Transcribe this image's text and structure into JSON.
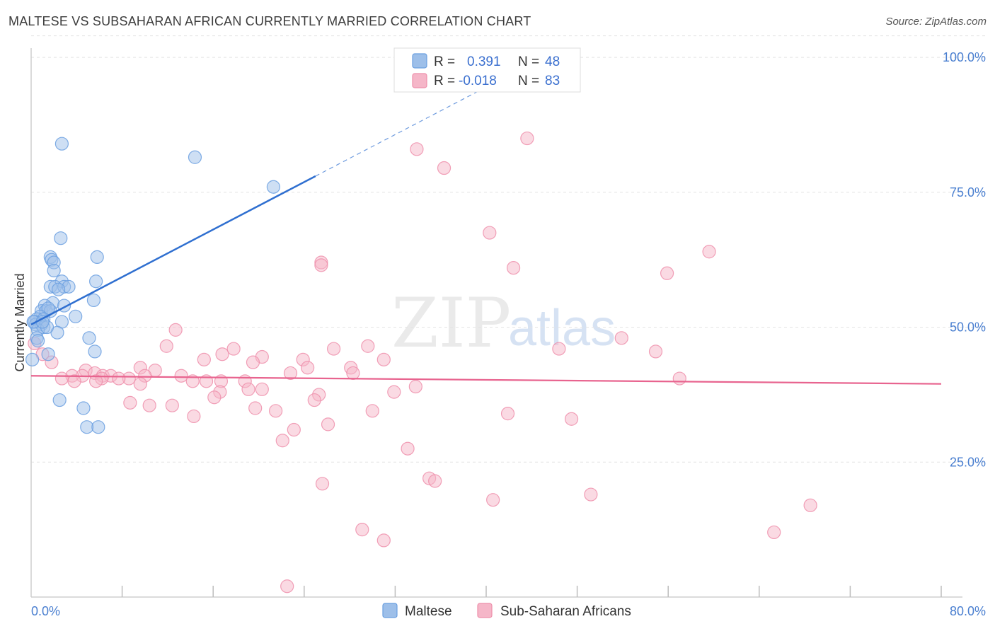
{
  "header": {
    "title": "MALTESE VS SUBSAHARAN AFRICAN CURRENTLY MARRIED CORRELATION CHART",
    "source": "Source: ZipAtlas.com"
  },
  "watermark": {
    "zip": "ZIP",
    "atlas": "atlas"
  },
  "legend_top": {
    "rows": [
      {
        "r_label": "R =",
        "r_value": "0.391",
        "n_label": "N =",
        "n_value": "48",
        "color": "#9dbfe9"
      },
      {
        "r_label": "R =",
        "r_value": "-0.018",
        "n_label": "N =",
        "n_value": "83",
        "color": "#f5b6c8"
      }
    ]
  },
  "legend_bottom": {
    "items": [
      {
        "label": "Maltese",
        "color": "#9dbfe9"
      },
      {
        "label": "Sub-Saharan Africans",
        "color": "#f5b6c8"
      }
    ]
  },
  "chart_data": {
    "type": "scatter",
    "title": "MALTESE VS SUBSAHARAN AFRICAN CURRENTLY MARRIED CORRELATION CHART",
    "xlabel": "",
    "ylabel": "Currently Married",
    "xlim": [
      0,
      80
    ],
    "ylim": [
      0,
      105
    ],
    "x_tick_labels": [
      "0.0%",
      "80.0%"
    ],
    "y_tick_labels": [
      "25.0%",
      "50.0%",
      "75.0%",
      "100.0%"
    ],
    "y_ticks": [
      25,
      50,
      75,
      100
    ],
    "grid": true,
    "series": [
      {
        "name": "Maltese",
        "color": "#6a9fe0",
        "fill": "#9dbfe9",
        "trend": {
          "x0": 0,
          "y0": 50.5,
          "x1": 25,
          "y1": 78,
          "dashed_to_x": 45,
          "color": "#2f6fd0"
        },
        "points": [
          [
            2.7,
            84
          ],
          [
            14.4,
            81.5
          ],
          [
            21.3,
            76
          ],
          [
            2.6,
            66.5
          ],
          [
            1.7,
            63
          ],
          [
            5.8,
            63
          ],
          [
            1.8,
            62.5
          ],
          [
            2.0,
            62
          ],
          [
            2.0,
            60.5
          ],
          [
            2.7,
            58.5
          ],
          [
            5.7,
            58.5
          ],
          [
            1.7,
            57.5
          ],
          [
            2.1,
            57.5
          ],
          [
            2.9,
            57.5
          ],
          [
            3.3,
            57.5
          ],
          [
            2.4,
            57
          ],
          [
            1.9,
            54.5
          ],
          [
            1.2,
            54
          ],
          [
            5.5,
            55
          ],
          [
            2.9,
            54
          ],
          [
            0.9,
            53
          ],
          [
            1.3,
            53
          ],
          [
            1.7,
            53
          ],
          [
            1.5,
            53.5
          ],
          [
            0.8,
            52
          ],
          [
            0.5,
            51.5
          ],
          [
            1.1,
            51.5
          ],
          [
            0.3,
            51
          ],
          [
            3.9,
            52
          ],
          [
            0.4,
            50.5
          ],
          [
            0.9,
            50.5
          ],
          [
            1.1,
            50
          ],
          [
            2.7,
            51
          ],
          [
            0.6,
            49.5
          ],
          [
            2.3,
            49
          ],
          [
            1.4,
            50
          ],
          [
            5.1,
            48
          ],
          [
            0.5,
            48
          ],
          [
            5.6,
            45.5
          ],
          [
            1.5,
            45
          ],
          [
            0.6,
            47.5
          ],
          [
            0.1,
            44
          ],
          [
            2.5,
            36.5
          ],
          [
            4.6,
            35
          ],
          [
            4.9,
            31.5
          ],
          [
            5.9,
            31.5
          ],
          [
            0.2,
            51
          ],
          [
            1.0,
            51
          ]
        ]
      },
      {
        "name": "Sub-Saharan Africans",
        "color": "#ee8fab",
        "fill": "#f5b6c8",
        "trend": {
          "x0": 0,
          "y0": 41,
          "x1": 80,
          "y1": 39.5,
          "color": "#e8648f"
        },
        "points": [
          [
            43.6,
            85
          ],
          [
            33.9,
            83
          ],
          [
            36.3,
            79.5
          ],
          [
            40.3,
            67.5
          ],
          [
            59.6,
            64
          ],
          [
            25.5,
            62
          ],
          [
            25.5,
            61.5
          ],
          [
            42.4,
            61
          ],
          [
            55.9,
            60
          ],
          [
            12.7,
            49.5
          ],
          [
            51.9,
            48
          ],
          [
            29.6,
            46.5
          ],
          [
            11.9,
            46.5
          ],
          [
            17.8,
            46
          ],
          [
            26.6,
            46
          ],
          [
            46.4,
            46
          ],
          [
            54.9,
            45.5
          ],
          [
            1.0,
            45
          ],
          [
            16.8,
            45
          ],
          [
            20.3,
            44.5
          ],
          [
            23.9,
            44
          ],
          [
            15.2,
            44
          ],
          [
            31.0,
            44
          ],
          [
            19.5,
            43.5
          ],
          [
            1.8,
            43.5
          ],
          [
            24.3,
            42.5
          ],
          [
            28.1,
            42.5
          ],
          [
            9.6,
            42.5
          ],
          [
            10.9,
            42
          ],
          [
            4.8,
            42
          ],
          [
            5.6,
            41.5
          ],
          [
            22.8,
            41.5
          ],
          [
            28.3,
            41.5
          ],
          [
            6.3,
            41
          ],
          [
            4.5,
            41
          ],
          [
            7.0,
            41
          ],
          [
            13.2,
            41
          ],
          [
            10.0,
            41
          ],
          [
            3.6,
            41
          ],
          [
            57.0,
            40.5
          ],
          [
            8.6,
            40.5
          ],
          [
            6.2,
            40.5
          ],
          [
            7.7,
            40.5
          ],
          [
            2.7,
            40.5
          ],
          [
            15.4,
            40
          ],
          [
            16.7,
            40
          ],
          [
            5.7,
            40
          ],
          [
            18.8,
            40
          ],
          [
            3.8,
            40
          ],
          [
            14.2,
            40
          ],
          [
            9.6,
            39.5
          ],
          [
            33.8,
            39
          ],
          [
            19.1,
            38.5
          ],
          [
            20.3,
            38.5
          ],
          [
            16.6,
            38
          ],
          [
            31.9,
            38
          ],
          [
            25.3,
            37.5
          ],
          [
            16.1,
            37
          ],
          [
            24.9,
            36.5
          ],
          [
            8.7,
            36
          ],
          [
            10.4,
            35.5
          ],
          [
            12.4,
            35.5
          ],
          [
            19.7,
            35
          ],
          [
            21.5,
            34.5
          ],
          [
            30.0,
            34.5
          ],
          [
            41.9,
            34
          ],
          [
            14.3,
            33.5
          ],
          [
            47.5,
            33
          ],
          [
            26.1,
            32
          ],
          [
            23.1,
            31
          ],
          [
            22.1,
            29
          ],
          [
            33.1,
            27.5
          ],
          [
            35.0,
            22
          ],
          [
            35.5,
            21.5
          ],
          [
            25.6,
            21
          ],
          [
            40.6,
            18
          ],
          [
            49.2,
            19
          ],
          [
            68.5,
            17
          ],
          [
            29.1,
            12.5
          ],
          [
            31.0,
            10.5
          ],
          [
            65.3,
            12
          ],
          [
            22.5,
            2
          ],
          [
            0.3,
            47
          ]
        ]
      }
    ]
  }
}
